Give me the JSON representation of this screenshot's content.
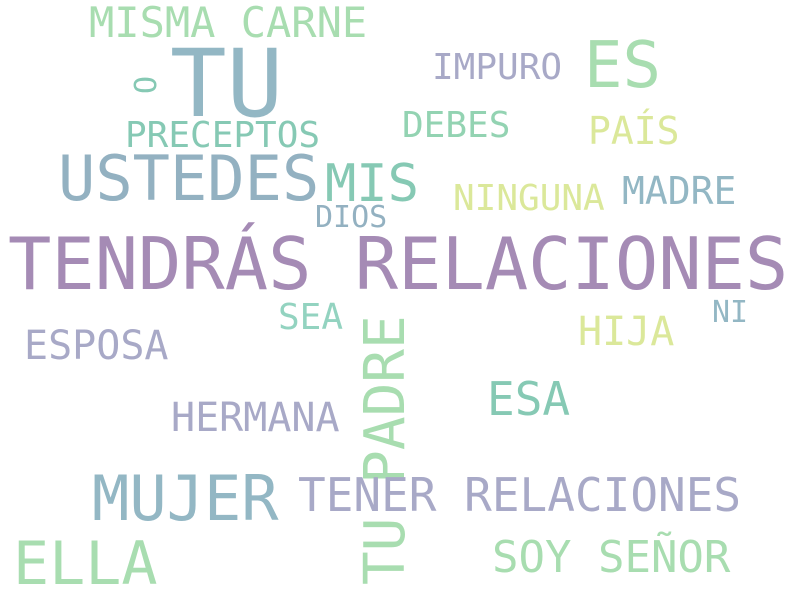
{
  "word_cloud": {
    "words": [
      {
        "id": "misma-carne",
        "text": "MISMA CARNE",
        "color": "#A8DDB0"
      },
      {
        "id": "tu-big",
        "text": "TU",
        "color": "#93B7C4"
      },
      {
        "id": "o",
        "text": "O",
        "color": "#86C9B4"
      },
      {
        "id": "impuro",
        "text": "IMPURO",
        "color": "#A8A9C7"
      },
      {
        "id": "es",
        "text": "ES",
        "color": "#A8DDB0"
      },
      {
        "id": "preceptos",
        "text": "PRECEPTOS",
        "color": "#86C9B4"
      },
      {
        "id": "debes",
        "text": "DEBES",
        "color": "#93D3B2"
      },
      {
        "id": "pais",
        "text": "PAÍS",
        "color": "#DBE89A"
      },
      {
        "id": "ustedes",
        "text": "USTEDES",
        "color": "#93B1C1"
      },
      {
        "id": "mis",
        "text": "MIS",
        "color": "#86C9B4"
      },
      {
        "id": "ninguna",
        "text": "NINGUNA",
        "color": "#DBE89A"
      },
      {
        "id": "madre",
        "text": "MADRE",
        "color": "#93B7C4"
      },
      {
        "id": "dios",
        "text": "DIOS",
        "color": "#93B1C1"
      },
      {
        "id": "tendras-relaciones",
        "text": "TENDRÁS RELACIONES",
        "color": "#A58BB5"
      },
      {
        "id": "sea",
        "text": "SEA",
        "color": "#93D3C0"
      },
      {
        "id": "ni",
        "text": "NI",
        "color": "#93B7C4"
      },
      {
        "id": "esposa",
        "text": "ESPOSA",
        "color": "#A8A9C7"
      },
      {
        "id": "hija",
        "text": "HIJA",
        "color": "#DBE89A"
      },
      {
        "id": "tu-padre",
        "text": "TU PADRE",
        "color": "#A8DDB0"
      },
      {
        "id": "esa",
        "text": "ESA",
        "color": "#86C9B4"
      },
      {
        "id": "hermana",
        "text": "HERMANA",
        "color": "#A8A9C7"
      },
      {
        "id": "mujer",
        "text": "MUJER",
        "color": "#93B7C4"
      },
      {
        "id": "tener-relaciones",
        "text": "TENER RELACIONES",
        "color": "#A8A9C7"
      },
      {
        "id": "ella",
        "text": "ELLA",
        "color": "#A8DDB0"
      },
      {
        "id": "soy-senor",
        "text": "SOY SEÑOR",
        "color": "#A8DDB0"
      }
    ]
  }
}
